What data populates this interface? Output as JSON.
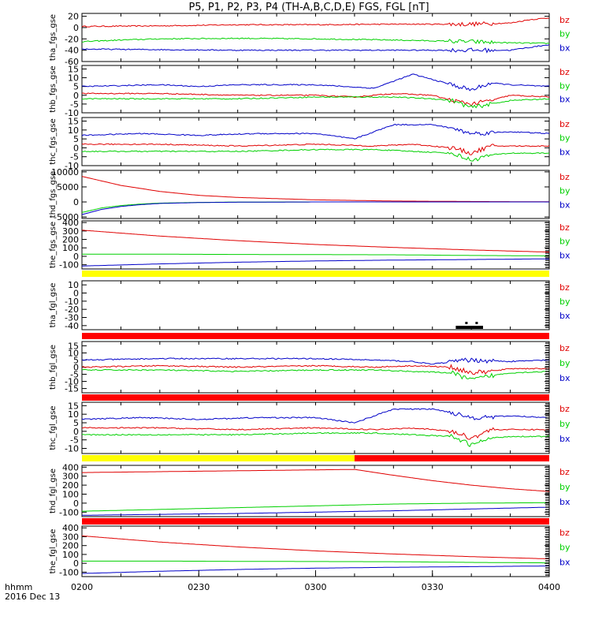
{
  "figure": {
    "title": "P5, P1, P2, P3, P4 (TH-A,B,C,D,E) FGS, FGL [nT]",
    "time_unit_label": "hhmm",
    "date_label": "2016 Dec 13",
    "x_ticks": [
      "0200",
      "0230",
      "0300",
      "0330",
      "0400"
    ],
    "x_range_minutes": [
      0,
      120
    ],
    "colors": {
      "bz": "#e00000",
      "by": "#00d000",
      "bx": "#0000c8",
      "yellow": "#ffff00",
      "red": "#ff0000",
      "black": "#000000"
    }
  },
  "chart_data": [
    {
      "type": "line",
      "ylabel": "tha_fgs_gse",
      "ylim": [
        -60,
        25
      ],
      "yticks": [
        "20",
        "0",
        "-20",
        "-40",
        "-60"
      ],
      "ytick_values": [
        20,
        0,
        -20,
        -40,
        -60
      ],
      "legend": [
        "bz",
        "by",
        "bx"
      ],
      "series": [
        {
          "name": "bz",
          "color": "#e00000",
          "x": [
            0,
            20,
            40,
            60,
            80,
            100,
            110,
            115,
            120
          ],
          "values": [
            2,
            3,
            5,
            5,
            6,
            6,
            8,
            14,
            17
          ]
        },
        {
          "name": "by",
          "color": "#00d000",
          "x": [
            0,
            10,
            20,
            40,
            60,
            80,
            100,
            110,
            120
          ],
          "values": [
            -25,
            -22,
            -20,
            -19,
            -20,
            -22,
            -25,
            -27,
            -28
          ]
        },
        {
          "name": "bx",
          "color": "#0000c8",
          "x": [
            0,
            20,
            40,
            60,
            80,
            100,
            110,
            115,
            120
          ],
          "values": [
            -38,
            -39,
            -40,
            -40,
            -40,
            -40,
            -40,
            -35,
            -30
          ]
        }
      ]
    },
    {
      "type": "line",
      "ylabel": "thb_fgs_gse",
      "ylim": [
        -10,
        17
      ],
      "yticks": [
        "15",
        "10",
        "5",
        "0",
        "-5",
        "-10"
      ],
      "ytick_values": [
        15,
        10,
        5,
        0,
        -5,
        -10
      ],
      "legend": [
        "bz",
        "by",
        "bx"
      ],
      "series": [
        {
          "name": "bz",
          "color": "#e00000",
          "x": [
            0,
            20,
            40,
            60,
            70,
            80,
            90,
            95,
            100,
            105,
            110,
            120
          ],
          "values": [
            1,
            1,
            0,
            0,
            -1,
            1,
            0,
            -3,
            -5,
            -3,
            0,
            -1
          ]
        },
        {
          "name": "by",
          "color": "#00d000",
          "x": [
            0,
            20,
            40,
            60,
            70,
            80,
            90,
            95,
            100,
            105,
            110,
            120
          ],
          "values": [
            -2,
            -2,
            -2,
            -1,
            -1,
            -1,
            -2,
            -3,
            -7,
            -5,
            -3,
            -2
          ]
        },
        {
          "name": "bx",
          "color": "#0000c8",
          "x": [
            0,
            20,
            30,
            40,
            60,
            75,
            85,
            95,
            100,
            105,
            110,
            120
          ],
          "values": [
            5,
            6,
            5,
            6,
            6,
            4,
            12,
            6,
            3,
            7,
            6,
            5
          ]
        }
      ]
    },
    {
      "type": "line",
      "ylabel": "thc_fgs_gse",
      "ylim": [
        -10,
        17
      ],
      "yticks": [
        "15",
        "10",
        "5",
        "0",
        "-5",
        "-10"
      ],
      "ytick_values": [
        15,
        10,
        5,
        0,
        -5,
        -10
      ],
      "legend": [
        "bz",
        "by",
        "bx"
      ],
      "series": [
        {
          "name": "bz",
          "color": "#e00000",
          "x": [
            0,
            20,
            40,
            60,
            75,
            85,
            95,
            100,
            105,
            110,
            120
          ],
          "values": [
            2,
            2,
            1,
            2,
            1,
            2,
            0,
            -3,
            1,
            1,
            1
          ]
        },
        {
          "name": "by",
          "color": "#00d000",
          "x": [
            0,
            20,
            40,
            60,
            75,
            85,
            95,
            100,
            105,
            110,
            120
          ],
          "values": [
            -2,
            -2,
            -2,
            -1,
            -1,
            -2,
            -3,
            -7,
            -4,
            -3,
            -3
          ]
        },
        {
          "name": "bx",
          "color": "#0000c8",
          "x": [
            0,
            15,
            30,
            45,
            60,
            70,
            80,
            90,
            95,
            100,
            110,
            120
          ],
          "values": [
            7,
            8,
            7,
            8,
            8,
            5,
            13,
            13,
            11,
            8,
            9,
            8
          ]
        }
      ]
    },
    {
      "type": "line",
      "ylabel": "thd_fgs_gse",
      "ylim": [
        -5500,
        10500
      ],
      "yticks": [
        "10000",
        "5000",
        "0",
        "-5000"
      ],
      "ytick_values": [
        10000,
        5000,
        0,
        -5000
      ],
      "legend": [
        "bz",
        "by",
        "bx"
      ],
      "series": [
        {
          "name": "bz",
          "color": "#e00000",
          "x": [
            0,
            10,
            20,
            30,
            40,
            60,
            80,
            100,
            120
          ],
          "values": [
            8500,
            5500,
            3500,
            2200,
            1500,
            700,
            300,
            150,
            50
          ]
        },
        {
          "name": "by",
          "color": "#00d000",
          "x": [
            0,
            5,
            10,
            15,
            20,
            30,
            40,
            60,
            120
          ],
          "values": [
            -3500,
            -2000,
            -1200,
            -700,
            -400,
            -150,
            -50,
            0,
            0
          ]
        },
        {
          "name": "bx",
          "color": "#0000c8",
          "x": [
            0,
            5,
            10,
            15,
            20,
            30,
            40,
            60,
            120
          ],
          "values": [
            -4200,
            -2500,
            -1500,
            -900,
            -500,
            -200,
            -80,
            0,
            0
          ]
        }
      ]
    },
    {
      "type": "line",
      "ylabel": "the_fgs_gse",
      "ylim": [
        -150,
        420
      ],
      "yticks": [
        "400",
        "300",
        "200",
        "100",
        "0",
        "-100"
      ],
      "ytick_values": [
        400,
        300,
        200,
        100,
        0,
        -100
      ],
      "legend": [
        "bz",
        "by",
        "bx"
      ],
      "series": [
        {
          "name": "bz",
          "color": "#e00000",
          "x": [
            0,
            20,
            40,
            60,
            80,
            100,
            120
          ],
          "values": [
            310,
            240,
            185,
            140,
            105,
            75,
            50
          ]
        },
        {
          "name": "by",
          "color": "#00d000",
          "x": [
            0,
            20,
            40,
            60,
            80,
            100,
            120
          ],
          "values": [
            25,
            25,
            22,
            20,
            18,
            10,
            5
          ]
        },
        {
          "name": "bx",
          "color": "#0000c8",
          "x": [
            0,
            20,
            40,
            60,
            80,
            100,
            120
          ],
          "values": [
            -115,
            -90,
            -70,
            -55,
            -45,
            -38,
            -30
          ]
        }
      ]
    },
    {
      "type": "line",
      "ylabel": "tha_fgl_gse",
      "ylim": [
        -45,
        15
      ],
      "yticks": [
        "10",
        "0",
        "-10",
        "-20",
        "-30",
        "-40"
      ],
      "ytick_values": [
        10,
        0,
        -10,
        -20,
        -30,
        -40
      ],
      "legend": [
        "bz",
        "by",
        "bx"
      ],
      "series": []
    },
    {
      "type": "line",
      "ylabel": "thb_fgl_gse",
      "ylim": [
        -18,
        18
      ],
      "yticks": [
        "15",
        "10",
        "5",
        "0",
        "-5",
        "-10",
        "-15"
      ],
      "ytick_values": [
        15,
        10,
        5,
        0,
        -5,
        -10,
        -15
      ],
      "legend": [
        "bz",
        "by",
        "bx"
      ],
      "series": [
        {
          "name": "bz",
          "color": "#e00000",
          "x": [
            0,
            20,
            40,
            60,
            75,
            85,
            95,
            100,
            105,
            110,
            120
          ],
          "values": [
            0,
            1,
            0,
            1,
            0,
            1,
            0,
            -4,
            -3,
            -1,
            -1
          ]
        },
        {
          "name": "by",
          "color": "#00d000",
          "x": [
            0,
            20,
            40,
            60,
            75,
            85,
            95,
            100,
            105,
            110,
            120
          ],
          "values": [
            -2,
            -2,
            -3,
            -2,
            -2,
            -3,
            -4,
            -9,
            -6,
            -4,
            -3
          ]
        },
        {
          "name": "bx",
          "color": "#0000c8",
          "x": [
            0,
            20,
            40,
            60,
            75,
            85,
            90,
            95,
            100,
            110,
            120
          ],
          "values": [
            5,
            6,
            6,
            6,
            5,
            4,
            2,
            4,
            5,
            4,
            5
          ]
        }
      ]
    },
    {
      "type": "line",
      "ylabel": "thc_fgl_gse",
      "ylim": [
        -13,
        17
      ],
      "yticks": [
        "15",
        "10",
        "5",
        "0",
        "-5",
        "-10"
      ],
      "ytick_values": [
        15,
        10,
        5,
        0,
        -5,
        -10
      ],
      "legend": [
        "bz",
        "by",
        "bx"
      ],
      "series": [
        {
          "name": "bz",
          "color": "#e00000",
          "x": [
            0,
            20,
            40,
            60,
            75,
            85,
            95,
            100,
            105,
            110,
            120
          ],
          "values": [
            2,
            2,
            1,
            2,
            1,
            2,
            0,
            -4,
            1,
            1,
            1
          ]
        },
        {
          "name": "by",
          "color": "#00d000",
          "x": [
            0,
            20,
            40,
            60,
            75,
            85,
            95,
            100,
            105,
            110,
            120
          ],
          "values": [
            -2,
            -2,
            -2,
            -1,
            -1,
            -2,
            -3,
            -8,
            -4,
            -3,
            -3
          ]
        },
        {
          "name": "bx",
          "color": "#0000c8",
          "x": [
            0,
            15,
            30,
            45,
            60,
            70,
            80,
            90,
            95,
            100,
            110,
            120
          ],
          "values": [
            7,
            8,
            7,
            8,
            8,
            5,
            13,
            13,
            11,
            8,
            9,
            8
          ]
        }
      ]
    },
    {
      "type": "line",
      "ylabel": "thd_fgl_gse",
      "ylim": [
        -150,
        420
      ],
      "yticks": [
        "400",
        "300",
        "200",
        "100",
        "0",
        "-100"
      ],
      "ytick_values": [
        400,
        300,
        200,
        100,
        0,
        -100
      ],
      "legend": [
        "bz",
        "by",
        "bx"
      ],
      "series": [
        {
          "name": "bz",
          "color": "#e00000",
          "x": [
            0,
            20,
            40,
            60,
            70,
            80,
            90,
            100,
            110,
            120
          ],
          "values": [
            340,
            350,
            360,
            370,
            375,
            310,
            250,
            200,
            160,
            130
          ]
        },
        {
          "name": "by",
          "color": "#00d000",
          "x": [
            0,
            20,
            40,
            60,
            80,
            100,
            120
          ],
          "values": [
            -90,
            -70,
            -50,
            -30,
            -10,
            0,
            5
          ]
        },
        {
          "name": "bx",
          "color": "#0000c8",
          "x": [
            0,
            20,
            40,
            60,
            80,
            100,
            120
          ],
          "values": [
            -135,
            -125,
            -115,
            -100,
            -85,
            -65,
            -45
          ]
        }
      ]
    },
    {
      "type": "line",
      "ylabel": "the_fgl_gse",
      "ylim": [
        -150,
        420
      ],
      "yticks": [
        "400",
        "300",
        "200",
        "100",
        "0",
        "-100"
      ],
      "ytick_values": [
        400,
        300,
        200,
        100,
        0,
        -100
      ],
      "legend": [
        "bz",
        "by",
        "bx"
      ],
      "series": [
        {
          "name": "bz",
          "color": "#e00000",
          "x": [
            0,
            20,
            40,
            60,
            80,
            100,
            120
          ],
          "values": [
            310,
            240,
            185,
            140,
            105,
            75,
            50
          ]
        },
        {
          "name": "by",
          "color": "#00d000",
          "x": [
            0,
            20,
            40,
            60,
            80,
            100,
            120
          ],
          "values": [
            25,
            25,
            22,
            20,
            18,
            10,
            5
          ]
        },
        {
          "name": "bx",
          "color": "#0000c8",
          "x": [
            0,
            20,
            40,
            60,
            80,
            100,
            120
          ],
          "values": [
            -115,
            -90,
            -70,
            -55,
            -45,
            -38,
            -30
          ]
        }
      ]
    }
  ],
  "status_bars": [
    {
      "after_panel": 4,
      "segments": [
        {
          "from": 0,
          "to": 120,
          "color": "#ffff00"
        }
      ]
    },
    {
      "after_panel": 5,
      "segments": [
        {
          "from": 0,
          "to": 120,
          "color": "#ff0000"
        }
      ],
      "marks": [
        {
          "from": 96,
          "to": 103,
          "color": "#000000"
        }
      ]
    },
    {
      "after_panel": 6,
      "segments": [
        {
          "from": 0,
          "to": 120,
          "color": "#ff0000"
        }
      ]
    },
    {
      "after_panel": 7,
      "segments": [
        {
          "from": 0,
          "to": 70,
          "color": "#ffff00"
        },
        {
          "from": 70,
          "to": 120,
          "color": "#ff0000"
        }
      ]
    },
    {
      "after_panel": 8,
      "segments": [
        {
          "from": 0,
          "to": 120,
          "color": "#ff0000"
        }
      ]
    }
  ],
  "right_edge_ticks": [
    4,
    5,
    6,
    7,
    8,
    9
  ]
}
